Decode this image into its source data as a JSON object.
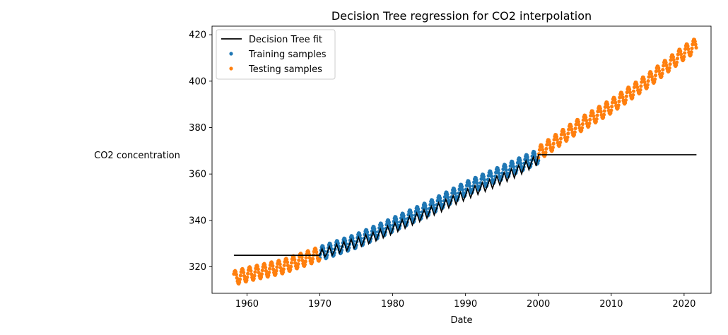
{
  "chart_data": {
    "type": "scatter",
    "title": "Decision Tree regression for CO2 interpolation",
    "xlabel": "Date",
    "ylabel": "CO2 concentration",
    "xlim": [
      1955.2,
      2023.7
    ],
    "ylim": [
      308.6,
      423.7
    ],
    "x_ticks": [
      1960,
      1970,
      1980,
      1990,
      2000,
      2010,
      2020
    ],
    "y_ticks": [
      320,
      340,
      360,
      380,
      400,
      420
    ],
    "grid": false,
    "legend_position": "top-left",
    "colors": {
      "fit": "#000000",
      "training": "#1f77b4",
      "testing": "#ff7f0e"
    },
    "series": [
      {
        "name": "Decision Tree fit",
        "kind": "line",
        "color": "#000000",
        "x": [
          1958.2,
          1970.0,
          1970.3,
          1970.7,
          1971.0,
          1971.3,
          1971.7,
          1972.0,
          1972.3,
          1972.7,
          1973.0,
          1973.3,
          1973.7,
          1974.0,
          1974.3,
          1974.7,
          1975.0,
          1975.3,
          1975.7,
          1976.0,
          1976.3,
          1976.7,
          1977.0,
          1977.3,
          1977.7,
          1978.0,
          1978.3,
          1978.7,
          1979.0,
          1979.3,
          1979.7,
          1980.0,
          1980.3,
          1980.7,
          1981.0,
          1981.3,
          1981.7,
          1982.0,
          1982.3,
          1982.7,
          1983.0,
          1983.3,
          1983.7,
          1984.0,
          1984.3,
          1984.7,
          1985.0,
          1985.3,
          1985.7,
          1986.0,
          1986.3,
          1986.7,
          1987.0,
          1987.3,
          1987.7,
          1988.0,
          1988.3,
          1988.7,
          1989.0,
          1989.3,
          1989.7,
          1990.0,
          1990.3,
          1990.7,
          1991.0,
          1991.3,
          1991.7,
          1992.0,
          1992.3,
          1992.7,
          1993.0,
          1993.3,
          1993.7,
          1994.0,
          1994.3,
          1994.7,
          1995.0,
          1995.3,
          1995.7,
          1996.0,
          1996.3,
          1996.7,
          1997.0,
          1997.3,
          1997.7,
          1998.0,
          1998.3,
          1998.7,
          1999.0,
          1999.3,
          1999.7,
          2000.0,
          2021.7
        ],
        "y": [
          325.0,
          325.0,
          327.8,
          324.3,
          326.0,
          328.8,
          325.0,
          327.0,
          329.8,
          326.0,
          328.2,
          330.8,
          327.0,
          329.2,
          331.9,
          328.0,
          330.0,
          332.8,
          328.9,
          331.0,
          333.9,
          330.0,
          332.2,
          335.0,
          331.2,
          333.5,
          336.3,
          332.5,
          334.8,
          337.6,
          333.8,
          336.2,
          339.0,
          335.2,
          337.6,
          340.4,
          336.6,
          339.0,
          341.8,
          338.0,
          340.4,
          343.2,
          339.5,
          341.9,
          344.6,
          340.9,
          343.4,
          346.1,
          342.3,
          344.9,
          347.6,
          343.8,
          346.4,
          349.1,
          345.4,
          348.0,
          350.7,
          346.9,
          349.5,
          352.2,
          348.4,
          350.9,
          353.6,
          349.8,
          352.3,
          355.0,
          351.2,
          353.6,
          356.3,
          352.5,
          355.0,
          357.6,
          353.8,
          356.5,
          359.1,
          355.3,
          358.0,
          360.6,
          356.8,
          359.5,
          362.2,
          358.3,
          361.2,
          363.8,
          360.0,
          362.9,
          365.7,
          361.8,
          364.6,
          367.3,
          363.4,
          368.3,
          368.3
        ]
      },
      {
        "name": "Training samples",
        "kind": "points",
        "color": "#1f77b4",
        "x_range": [
          1970.0,
          2000.0
        ],
        "trend_at": {
          "1970": 325.7,
          "1975": 331.1,
          "1980": 338.1,
          "1985": 345.3,
          "1990": 353.6,
          "1995": 360.6,
          "2000": 367.6
        },
        "seasonal_amplitude": 3.0,
        "samples_per_year": 12
      },
      {
        "name": "Testing samples",
        "kind": "points",
        "color": "#ff7f0e",
        "x_ranges": [
          [
            1958.2,
            1970.0
          ],
          [
            2000.0,
            2021.7
          ]
        ],
        "trend_at": {
          "1958": 315.0,
          "1960": 316.7,
          "1965": 320.2,
          "1970": 325.7,
          "2000": 368.8,
          "2005": 379.8,
          "2010": 389.2,
          "2015": 400.2,
          "2020": 412.3,
          "2021.7": 415.7
        },
        "seasonal_amplitude": 3.0,
        "samples_per_year": 12
      }
    ]
  }
}
